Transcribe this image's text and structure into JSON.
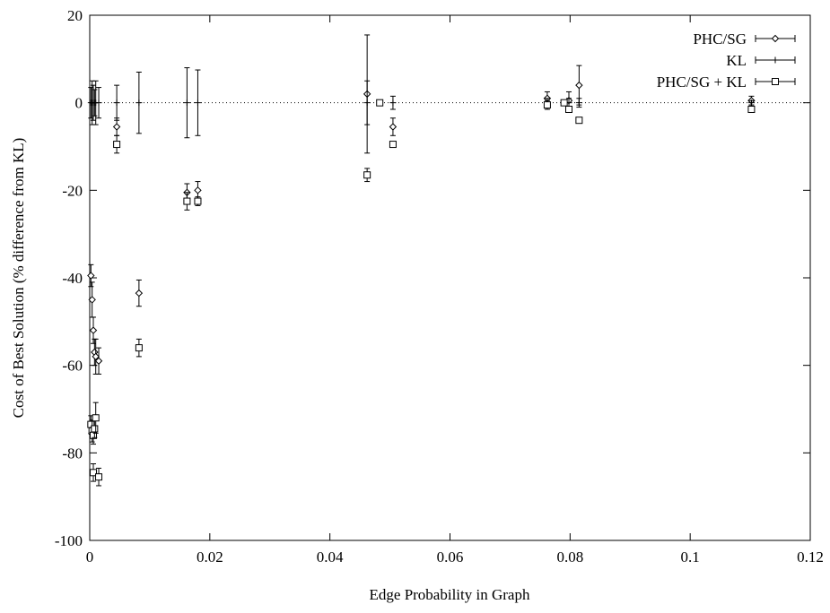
{
  "chart_data": {
    "type": "scatter",
    "title": "",
    "xlabel": "Edge Probability in Graph",
    "ylabel": "Cost of Best Solution (% difference from KL)",
    "xlim": [
      0,
      0.12
    ],
    "ylim": [
      -100,
      20
    ],
    "x_ticks": [
      0,
      0.02,
      0.04,
      0.06,
      0.08,
      0.1,
      0.12
    ],
    "x_tick_labels": [
      "0",
      "0.02",
      "0.04",
      "0.06",
      "0.08",
      "0.1",
      "0.12"
    ],
    "y_ticks": [
      -100,
      -80,
      -60,
      -40,
      -20,
      0,
      20
    ],
    "y_tick_labels": [
      "-100",
      "-80",
      "-60",
      "-40",
      "-20",
      "0",
      "20"
    ],
    "grid": false,
    "reference_line_y": 0,
    "legend_position": "top-right",
    "series": [
      {
        "name": "PHC/SG",
        "marker": "diamond",
        "points": [
          {
            "x": 0.0002,
            "y": -39.5,
            "err": 2.5
          },
          {
            "x": 0.0004,
            "y": -45,
            "err": 4
          },
          {
            "x": 0.0006,
            "y": -52,
            "err": 3
          },
          {
            "x": 0.0008,
            "y": -57,
            "err": 3
          },
          {
            "x": 0.001,
            "y": -58,
            "err": 4
          },
          {
            "x": 0.0015,
            "y": -59,
            "err": 3
          },
          {
            "x": 0.0045,
            "y": -5.5,
            "err": 2
          },
          {
            "x": 0.0082,
            "y": -43.5,
            "err": 3
          },
          {
            "x": 0.0162,
            "y": -20.5,
            "err": 2
          },
          {
            "x": 0.018,
            "y": -20,
            "err": 2
          },
          {
            "x": 0.0462,
            "y": 2,
            "err": 13.5
          },
          {
            "x": 0.0505,
            "y": -5.5,
            "err": 2
          },
          {
            "x": 0.0762,
            "y": 1,
            "err": 1.5
          },
          {
            "x": 0.0798,
            "y": 0.5,
            "err": 2
          },
          {
            "x": 0.0815,
            "y": 4,
            "err": 4.5
          },
          {
            "x": 0.1102,
            "y": 0.5,
            "err": 1
          }
        ]
      },
      {
        "name": "KL",
        "marker": "plus",
        "points": [
          {
            "x": 0.0002,
            "y": 0,
            "err": 3.5
          },
          {
            "x": 0.0004,
            "y": 0,
            "err": 5
          },
          {
            "x": 0.0006,
            "y": 0,
            "err": 4
          },
          {
            "x": 0.0008,
            "y": 0,
            "err": 3
          },
          {
            "x": 0.001,
            "y": 0,
            "err": 5
          },
          {
            "x": 0.0015,
            "y": 0,
            "err": 3.5
          },
          {
            "x": 0.0045,
            "y": 0,
            "err": 4
          },
          {
            "x": 0.0082,
            "y": 0,
            "err": 7
          },
          {
            "x": 0.0162,
            "y": 0,
            "err": 8
          },
          {
            "x": 0.018,
            "y": 0,
            "err": 7.5
          },
          {
            "x": 0.0462,
            "y": 0,
            "err": 5
          },
          {
            "x": 0.0483,
            "y": 0,
            "err": 0.5
          },
          {
            "x": 0.0505,
            "y": 0,
            "err": 1.5
          },
          {
            "x": 0.0762,
            "y": 0,
            "err": 1
          },
          {
            "x": 0.079,
            "y": 0,
            "err": 0.5
          },
          {
            "x": 0.0798,
            "y": 0,
            "err": 1
          },
          {
            "x": 0.0815,
            "y": 0,
            "err": 1
          },
          {
            "x": 0.1102,
            "y": 0,
            "err": 0.5
          }
        ]
      },
      {
        "name": "PHC/SG + KL",
        "marker": "square",
        "points": [
          {
            "x": 0.0002,
            "y": -73.5,
            "err": 2
          },
          {
            "x": 0.0004,
            "y": -75,
            "err": 2.5
          },
          {
            "x": 0.0006,
            "y": -76,
            "err": 2
          },
          {
            "x": 0.0008,
            "y": -74.5,
            "err": 2
          },
          {
            "x": 0.001,
            "y": -72,
            "err": 3.5
          },
          {
            "x": 0.0006,
            "y": -84.5,
            "err": 2
          },
          {
            "x": 0.0015,
            "y": -85.5,
            "err": 2
          },
          {
            "x": 0.0045,
            "y": -9.5,
            "err": 2
          },
          {
            "x": 0.0082,
            "y": -56,
            "err": 2
          },
          {
            "x": 0.0162,
            "y": -22.5,
            "err": 2
          },
          {
            "x": 0.018,
            "y": -22.5,
            "err": 1
          },
          {
            "x": 0.0462,
            "y": -16.5,
            "err": 1.5
          },
          {
            "x": 0.0483,
            "y": 0,
            "err": 0.5
          },
          {
            "x": 0.0505,
            "y": -9.5,
            "err": 0.5
          },
          {
            "x": 0.0762,
            "y": -0.5,
            "err": 1
          },
          {
            "x": 0.079,
            "y": 0,
            "err": 0.5
          },
          {
            "x": 0.0798,
            "y": -1.5,
            "err": 0.5
          },
          {
            "x": 0.0815,
            "y": -4,
            "err": 0.5
          },
          {
            "x": 0.1102,
            "y": -1.5,
            "err": 0.5
          }
        ]
      }
    ]
  }
}
